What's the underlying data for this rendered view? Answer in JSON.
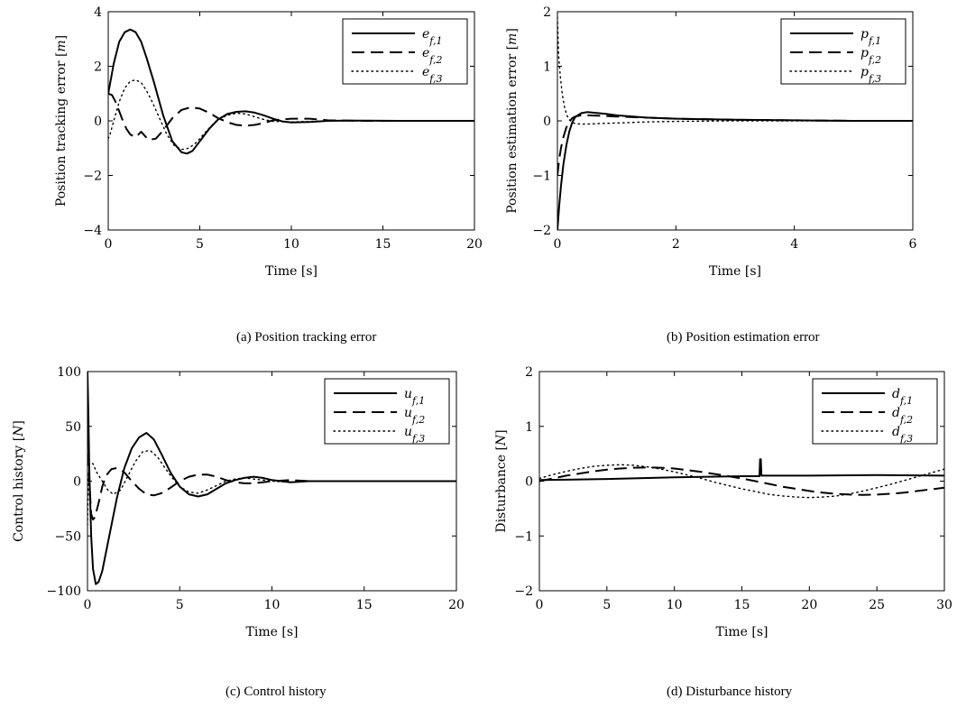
{
  "chart_data": [
    {
      "id": "a",
      "type": "line",
      "caption": "(a)  Position tracking error",
      "xlabel": "Time [s]",
      "ylabel": "Position tracking error [m]",
      "xlim": [
        0,
        20
      ],
      "ylim": [
        -4,
        4
      ],
      "xticks": [
        0,
        5,
        10,
        15,
        20
      ],
      "yticks": [
        -4,
        -2,
        0,
        2,
        4
      ],
      "grid": false,
      "legend_position": "top-right",
      "series": [
        {
          "name": "e_{f,1}",
          "style": "solid",
          "x": [
            0,
            0.3,
            0.6,
            0.9,
            1.2,
            1.5,
            1.8,
            2.1,
            2.5,
            3.0,
            3.5,
            4.0,
            4.3,
            4.6,
            5.0,
            5.5,
            6.0,
            6.5,
            7.0,
            7.5,
            8.0,
            8.5,
            9.0,
            9.5,
            10.0,
            11.0,
            12.0,
            13.0,
            14.0,
            16.0,
            18.0,
            20.0
          ],
          "y": [
            1.0,
            2.1,
            2.9,
            3.25,
            3.35,
            3.25,
            2.9,
            2.3,
            1.4,
            0.2,
            -0.75,
            -1.15,
            -1.2,
            -1.1,
            -0.75,
            -0.3,
            0.05,
            0.25,
            0.33,
            0.35,
            0.3,
            0.2,
            0.08,
            -0.02,
            -0.06,
            -0.04,
            0.0,
            0.01,
            0.01,
            0.0,
            0.0,
            0.0
          ]
        },
        {
          "name": "e_{f,2}",
          "style": "dashed",
          "x": [
            0,
            0.2,
            0.4,
            0.6,
            0.8,
            1.0,
            1.2,
            1.5,
            1.8,
            2.2,
            2.6,
            3.0,
            3.5,
            4.0,
            4.5,
            5.0,
            5.5,
            6.0,
            6.5,
            7.0,
            7.5,
            8.0,
            8.5,
            9.0,
            10.0,
            11.0,
            12.0,
            14.0,
            16.0,
            18.0,
            20.0
          ],
          "y": [
            1.0,
            0.95,
            0.7,
            0.35,
            0.0,
            -0.3,
            -0.5,
            -0.6,
            -0.4,
            -0.7,
            -0.65,
            -0.35,
            0.1,
            0.4,
            0.5,
            0.45,
            0.3,
            0.1,
            -0.05,
            -0.15,
            -0.18,
            -0.15,
            -0.08,
            0.02,
            0.08,
            0.08,
            0.02,
            0.0,
            0.0,
            0.0,
            0.0
          ]
        },
        {
          "name": "e_{f,3}",
          "style": "dotted",
          "x": [
            0,
            0.1,
            0.3,
            0.6,
            0.9,
            1.2,
            1.5,
            1.8,
            2.1,
            2.4,
            2.8,
            3.2,
            3.6,
            4.0,
            4.4,
            4.8,
            5.2,
            5.6,
            6.0,
            6.5,
            7.0,
            7.5,
            8.0,
            8.5,
            9.0,
            10.0,
            11.0,
            12.0,
            14.0,
            16.0,
            18.0,
            20.0
          ],
          "y": [
            -0.65,
            -0.5,
            0.0,
            0.7,
            1.2,
            1.45,
            1.5,
            1.4,
            1.1,
            0.7,
            0.1,
            -0.5,
            -0.9,
            -1.05,
            -1.0,
            -0.8,
            -0.5,
            -0.2,
            0.05,
            0.2,
            0.28,
            0.25,
            0.15,
            0.05,
            -0.02,
            -0.04,
            -0.02,
            0.0,
            0.0,
            0.0,
            0.0,
            0.0
          ]
        }
      ]
    },
    {
      "id": "b",
      "type": "line",
      "caption": "(b)  Position estimation error",
      "xlabel": "Time [s]",
      "ylabel": "Position estimation error [m]",
      "xlim": [
        0,
        6
      ],
      "ylim": [
        -2,
        2
      ],
      "xticks": [
        0,
        2,
        4,
        6
      ],
      "yticks": [
        -2,
        -1,
        0,
        1,
        2
      ],
      "grid": false,
      "legend_position": "top-right",
      "series": [
        {
          "name": "p_{f,1}",
          "style": "solid",
          "x": [
            0,
            0.03,
            0.06,
            0.1,
            0.15,
            0.2,
            0.25,
            0.3,
            0.4,
            0.5,
            0.6,
            0.8,
            1.0,
            1.5,
            2.0,
            3.0,
            4.0,
            5.0,
            6.0
          ],
          "y": [
            -2.0,
            -1.55,
            -1.2,
            -0.8,
            -0.45,
            -0.2,
            -0.03,
            0.07,
            0.14,
            0.16,
            0.15,
            0.13,
            0.1,
            0.06,
            0.04,
            0.02,
            0.01,
            0.0,
            0.0
          ]
        },
        {
          "name": "p_{f,2}",
          "style": "dashed",
          "x": [
            0,
            0.03,
            0.06,
            0.1,
            0.15,
            0.2,
            0.25,
            0.3,
            0.4,
            0.5,
            0.8,
            1.0,
            1.5,
            2.0,
            3.0,
            4.0,
            5.0,
            6.0
          ],
          "y": [
            -1.0,
            -0.7,
            -0.5,
            -0.3,
            -0.12,
            -0.02,
            0.05,
            0.08,
            0.1,
            0.1,
            0.09,
            0.08,
            0.06,
            0.04,
            0.02,
            0.01,
            0.0,
            0.0
          ]
        },
        {
          "name": "p_{f,3}",
          "style": "dotted",
          "x": [
            0,
            0.02,
            0.05,
            0.08,
            0.12,
            0.16,
            0.2,
            0.25,
            0.3,
            0.4,
            0.5,
            0.7,
            1.0,
            1.5,
            2.0,
            3.0,
            4.0,
            5.0,
            6.0
          ],
          "y": [
            1.9,
            1.2,
            0.8,
            0.5,
            0.25,
            0.1,
            0.02,
            -0.03,
            -0.05,
            -0.06,
            -0.06,
            -0.05,
            -0.04,
            -0.02,
            -0.01,
            0.0,
            0.0,
            0.0,
            0.0
          ]
        }
      ]
    },
    {
      "id": "c",
      "type": "line",
      "caption": "(c)  Control history",
      "xlabel": "Time [s]",
      "ylabel": "Control history [N]",
      "xlim": [
        0,
        20
      ],
      "ylim": [
        -100,
        100
      ],
      "xticks": [
        0,
        5,
        10,
        15,
        20
      ],
      "yticks": [
        -100,
        -50,
        0,
        50,
        100
      ],
      "grid": false,
      "legend_position": "top-right",
      "series": [
        {
          "name": "u_{f,1}",
          "style": "solid",
          "x": [
            0,
            0.05,
            0.1,
            0.2,
            0.3,
            0.45,
            0.6,
            0.8,
            1.0,
            1.3,
            1.6,
            2.0,
            2.4,
            2.8,
            3.2,
            3.6,
            4.0,
            4.5,
            5.0,
            5.5,
            6.0,
            6.5,
            7.0,
            7.5,
            8.0,
            8.5,
            9.0,
            9.5,
            10.0,
            11.0,
            12.0,
            13.0,
            14.0,
            16.0,
            18.0,
            20.0
          ],
          "y": [
            100,
            60,
            10,
            -50,
            -80,
            -94,
            -92,
            -82,
            -65,
            -40,
            -15,
            12,
            30,
            40,
            44,
            38,
            25,
            8,
            -5,
            -12,
            -14,
            -12,
            -7,
            -2,
            1,
            3,
            4,
            3,
            1,
            -1,
            0,
            0,
            0,
            0,
            0,
            0
          ]
        },
        {
          "name": "u_{f,2}",
          "style": "dashed",
          "x": [
            0,
            0.05,
            0.1,
            0.2,
            0.3,
            0.4,
            0.6,
            0.8,
            1.0,
            1.3,
            1.6,
            2.0,
            2.4,
            2.8,
            3.2,
            3.6,
            4.0,
            4.5,
            5.0,
            5.5,
            6.0,
            6.5,
            7.0,
            7.5,
            8.0,
            8.5,
            9.0,
            9.5,
            10.0,
            11.0,
            12.0,
            14.0,
            16.0,
            18.0,
            20.0
          ],
          "y": [
            60,
            30,
            0,
            -30,
            -35,
            -33,
            -20,
            -5,
            5,
            11,
            12,
            8,
            0,
            -7,
            -12,
            -13,
            -11,
            -6,
            0,
            4,
            6,
            6,
            4,
            1,
            -1,
            -2,
            -2,
            -1,
            0,
            1,
            0,
            0,
            0,
            0,
            0
          ]
        },
        {
          "name": "u_{f,3}",
          "style": "dotted",
          "x": [
            0,
            0.05,
            0.1,
            0.3,
            0.5,
            0.8,
            1.1,
            1.4,
            1.8,
            2.2,
            2.6,
            3.0,
            3.4,
            3.8,
            4.2,
            4.6,
            5.0,
            5.5,
            6.0,
            6.5,
            7.0,
            7.5,
            8.0,
            8.5,
            9.0,
            10.0,
            11.0,
            12.0,
            14.0,
            16.0,
            18.0,
            20.0
          ],
          "y": [
            -40,
            0,
            16,
            16,
            8,
            0,
            -8,
            -12,
            -8,
            5,
            18,
            27,
            28,
            22,
            12,
            3,
            -5,
            -10,
            -11,
            -8,
            -4,
            0,
            2,
            3,
            2,
            0,
            -1,
            0,
            0,
            0,
            0,
            0
          ]
        }
      ]
    },
    {
      "id": "d",
      "type": "line",
      "caption": "(d)  Disturbance history",
      "xlabel": "Time [s]",
      "ylabel": "Disturbance [N]",
      "xlim": [
        0,
        30
      ],
      "ylim": [
        -2,
        2
      ],
      "xticks": [
        0,
        5,
        10,
        15,
        20,
        25,
        30
      ],
      "yticks": [
        -2,
        -1,
        0,
        1,
        2
      ],
      "grid": false,
      "legend_position": "top-right",
      "series": [
        {
          "name": "d_{f,1}",
          "style": "solid",
          "x": [
            0,
            5,
            10,
            15,
            16.3,
            16.35,
            16.4,
            16.45,
            16.5,
            18,
            20,
            25,
            30
          ],
          "y": [
            0.02,
            0.04,
            0.07,
            0.09,
            0.09,
            0.4,
            0.4,
            0.1,
            0.1,
            0.1,
            0.1,
            0.11,
            0.1
          ]
        },
        {
          "name": "d_{f,2}",
          "style": "dashed",
          "x": [
            0,
            1,
            2,
            3,
            4,
            5,
            6,
            7,
            8,
            9,
            10,
            11,
            12,
            13,
            14,
            15,
            16,
            17,
            18,
            19,
            20,
            21,
            22,
            23,
            24,
            25,
            26,
            27,
            28,
            29,
            30
          ],
          "y": [
            0.0,
            0.05,
            0.1,
            0.14,
            0.18,
            0.21,
            0.23,
            0.245,
            0.25,
            0.245,
            0.23,
            0.2,
            0.17,
            0.13,
            0.09,
            0.05,
            0.0,
            -0.05,
            -0.1,
            -0.14,
            -0.18,
            -0.21,
            -0.23,
            -0.245,
            -0.25,
            -0.245,
            -0.23,
            -0.21,
            -0.18,
            -0.15,
            -0.12
          ]
        },
        {
          "name": "d_{f,3}",
          "style": "dotted",
          "x": [
            0,
            1,
            2,
            3,
            4,
            5,
            6,
            7,
            8,
            9,
            10,
            11,
            12,
            13,
            14,
            15,
            16,
            17,
            18,
            19,
            20,
            21,
            22,
            23,
            24,
            25,
            26,
            27,
            28,
            29,
            30
          ],
          "y": [
            0.05,
            0.12,
            0.18,
            0.23,
            0.27,
            0.29,
            0.3,
            0.29,
            0.26,
            0.22,
            0.17,
            0.11,
            0.05,
            -0.02,
            -0.08,
            -0.14,
            -0.19,
            -0.24,
            -0.27,
            -0.29,
            -0.3,
            -0.29,
            -0.27,
            -0.23,
            -0.18,
            -0.12,
            -0.06,
            0.01,
            0.08,
            0.15,
            0.22
          ]
        }
      ]
    }
  ]
}
